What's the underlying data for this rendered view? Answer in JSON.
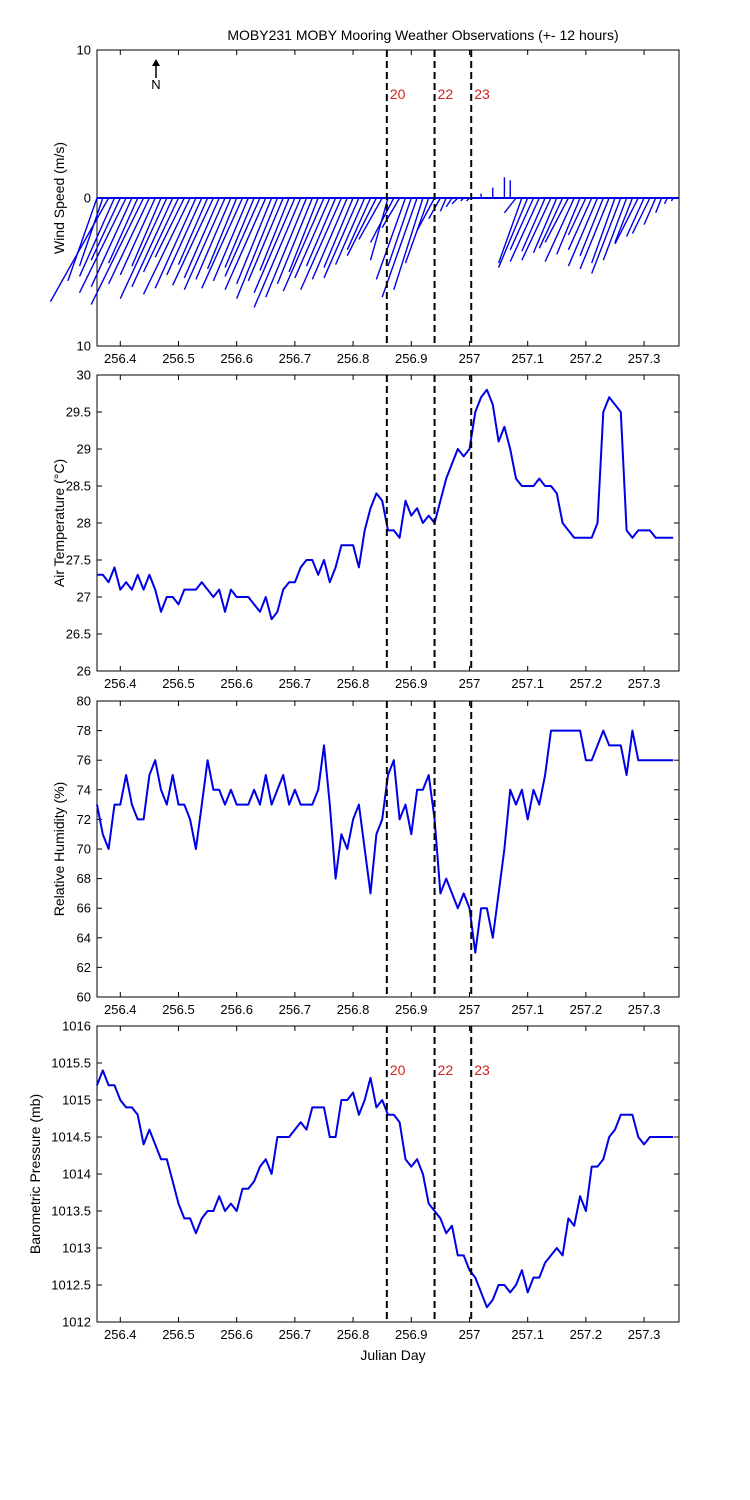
{
  "title": "MOBY231 MOBY Mooring Weather Observations (+- 12 hours)",
  "x_label": "Julian Day",
  "north_label": "N",
  "colors": {
    "series": "#0000e6",
    "event_label": "#cc2222",
    "axes": "#000000"
  },
  "event_lines": [
    {
      "x": 256.858,
      "label": "20"
    },
    {
      "x": 256.94,
      "label": "22"
    },
    {
      "x": 257.003,
      "label": "23"
    }
  ],
  "chart_data": [
    {
      "type": "wind-stick",
      "ylabel": "Wind Speed (m/s)",
      "xlim": [
        256.36,
        257.36
      ],
      "ylim": [
        -10,
        10
      ],
      "yticks": [
        10,
        0,
        10
      ],
      "xticks": [
        "256.4",
        "256.5",
        "256.6",
        "256.7",
        "256.8",
        "256.9",
        "257",
        "257.1",
        "257.2",
        "257.3"
      ],
      "show_event_labels": true,
      "sticks": [
        [
          256.36,
          -0.05,
          -5.6
        ],
        [
          256.37,
          -0.04,
          -4.6
        ],
        [
          256.38,
          -0.1,
          -7.0
        ],
        [
          256.39,
          -0.06,
          -5.3
        ],
        [
          256.4,
          -0.05,
          -4.2
        ],
        [
          256.41,
          -0.08,
          -6.4
        ],
        [
          256.42,
          -0.07,
          -6.0
        ],
        [
          256.43,
          -0.05,
          -4.4
        ],
        [
          256.44,
          -0.09,
          -7.2
        ],
        [
          256.45,
          -0.07,
          -5.8
        ],
        [
          256.46,
          -0.06,
          -5.2
        ],
        [
          256.47,
          -0.05,
          -4.6
        ],
        [
          256.48,
          -0.08,
          -6.8
        ],
        [
          256.49,
          -0.07,
          -6.0
        ],
        [
          256.5,
          -0.06,
          -5.0
        ],
        [
          256.51,
          -0.05,
          -4.0
        ],
        [
          256.52,
          -0.08,
          -6.5
        ],
        [
          256.53,
          -0.07,
          -6.1
        ],
        [
          256.54,
          -0.06,
          -5.2
        ],
        [
          256.55,
          -0.05,
          -4.5
        ],
        [
          256.56,
          -0.07,
          -5.9
        ],
        [
          256.57,
          -0.06,
          -5.4
        ],
        [
          256.58,
          -0.07,
          -6.2
        ],
        [
          256.59,
          -0.06,
          -5.5
        ],
        [
          256.6,
          -0.05,
          -4.8
        ],
        [
          256.61,
          -0.07,
          -6.1
        ],
        [
          256.62,
          -0.06,
          -5.6
        ],
        [
          256.63,
          -0.05,
          -4.7
        ],
        [
          256.64,
          -0.06,
          -5.3
        ],
        [
          256.65,
          -0.07,
          -6.2
        ],
        [
          256.66,
          -0.06,
          -5.8
        ],
        [
          256.67,
          -0.07,
          -6.8
        ],
        [
          256.68,
          -0.06,
          -5.6
        ],
        [
          256.69,
          -0.05,
          -4.9
        ],
        [
          256.7,
          -0.07,
          -6.4
        ],
        [
          256.71,
          -0.08,
          -7.4
        ],
        [
          256.72,
          -0.07,
          -6.7
        ],
        [
          256.73,
          -0.06,
          -5.8
        ],
        [
          256.74,
          -0.05,
          -5.0
        ],
        [
          256.75,
          -0.07,
          -6.3
        ],
        [
          256.76,
          -0.06,
          -5.4
        ],
        [
          256.77,
          -0.05,
          -4.6
        ],
        [
          256.78,
          -0.07,
          -6.2
        ],
        [
          256.79,
          -0.06,
          -5.5
        ],
        [
          256.8,
          -0.05,
          -4.7
        ],
        [
          256.81,
          -0.06,
          -5.4
        ],
        [
          256.82,
          -0.05,
          -4.5
        ],
        [
          256.83,
          -0.04,
          -3.5
        ],
        [
          256.84,
          -0.05,
          -3.9
        ],
        [
          256.85,
          -0.04,
          -2.8
        ],
        [
          256.86,
          -0.03,
          -4.2
        ],
        [
          256.87,
          -0.04,
          -3.0
        ],
        [
          256.88,
          -0.03,
          -2.0
        ],
        [
          256.89,
          -0.05,
          -5.5
        ],
        [
          256.9,
          -0.04,
          -4.6
        ],
        [
          256.91,
          -0.06,
          -6.7
        ],
        [
          256.92,
          -0.05,
          -6.2
        ],
        [
          256.93,
          -0.04,
          -4.4
        ],
        [
          256.94,
          -0.03,
          -2.2
        ],
        [
          256.95,
          -0.02,
          -1.4
        ],
        [
          256.96,
          -0.01,
          -0.9
        ],
        [
          256.97,
          -0.01,
          -0.6
        ],
        [
          256.98,
          -0.01,
          -0.4
        ],
        [
          256.99,
          -0.005,
          -0.2
        ],
        [
          257.0,
          -0.005,
          -0.2
        ],
        [
          257.02,
          0.0,
          0.3
        ],
        [
          257.04,
          0.0,
          0.7
        ],
        [
          257.06,
          0.0,
          1.4
        ],
        [
          257.07,
          0.0,
          1.2
        ],
        [
          257.08,
          -0.02,
          -1.0
        ],
        [
          257.09,
          -0.04,
          -4.4
        ],
        [
          257.1,
          -0.05,
          -4.7
        ],
        [
          257.11,
          -0.04,
          -3.5
        ],
        [
          257.12,
          -0.05,
          -4.3
        ],
        [
          257.13,
          -0.04,
          -3.6
        ],
        [
          257.14,
          -0.05,
          -4.2
        ],
        [
          257.15,
          -0.04,
          -3.7
        ],
        [
          257.16,
          -0.04,
          -3.4
        ],
        [
          257.17,
          -0.04,
          -3.0
        ],
        [
          257.18,
          -0.05,
          -4.3
        ],
        [
          257.19,
          -0.04,
          -3.8
        ],
        [
          257.2,
          -0.03,
          -2.5
        ],
        [
          257.21,
          -0.04,
          -3.5
        ],
        [
          257.22,
          -0.05,
          -4.6
        ],
        [
          257.23,
          -0.04,
          -3.9
        ],
        [
          257.24,
          -0.05,
          -4.8
        ],
        [
          257.25,
          -0.04,
          -4.4
        ],
        [
          257.26,
          -0.05,
          -5.1
        ],
        [
          257.27,
          -0.04,
          -4.2
        ],
        [
          257.28,
          -0.03,
          -3.0
        ],
        [
          257.29,
          -0.04,
          -3.1
        ],
        [
          257.3,
          -0.03,
          -2.6
        ],
        [
          257.31,
          -0.03,
          -2.4
        ],
        [
          257.32,
          -0.02,
          -1.8
        ],
        [
          257.33,
          -0.01,
          -1.0
        ],
        [
          257.34,
          -0.005,
          -0.4
        ],
        [
          257.35,
          -0.003,
          -0.2
        ]
      ]
    },
    {
      "type": "line",
      "ylabel": "Air Temperature (°C)",
      "xlim": [
        256.36,
        257.36
      ],
      "ylim": [
        26,
        30
      ],
      "yticks": [
        "26",
        "26.5",
        "27",
        "27.5",
        "28",
        "28.5",
        "29",
        "29.5",
        "30"
      ],
      "xticks": [
        "256.4",
        "256.5",
        "256.6",
        "256.7",
        "256.8",
        "256.9",
        "257",
        "257.1",
        "257.2",
        "257.3"
      ],
      "x": [
        256.36,
        256.37,
        256.38,
        256.39,
        256.4,
        256.41,
        256.42,
        256.43,
        256.44,
        256.45,
        256.46,
        256.47,
        256.48,
        256.49,
        256.5,
        256.51,
        256.52,
        256.53,
        256.54,
        256.55,
        256.56,
        256.57,
        256.58,
        256.59,
        256.6,
        256.61,
        256.62,
        256.63,
        256.64,
        256.65,
        256.66,
        256.67,
        256.68,
        256.69,
        256.7,
        256.71,
        256.72,
        256.73,
        256.74,
        256.75,
        256.76,
        256.77,
        256.78,
        256.79,
        256.8,
        256.81,
        256.82,
        256.83,
        256.84,
        256.85,
        256.86,
        256.87,
        256.88,
        256.89,
        256.9,
        256.91,
        256.92,
        256.93,
        256.94,
        256.95,
        256.96,
        256.97,
        256.98,
        256.99,
        257.0,
        257.01,
        257.02,
        257.03,
        257.04,
        257.05,
        257.06,
        257.07,
        257.08,
        257.09,
        257.1,
        257.11,
        257.12,
        257.13,
        257.14,
        257.15,
        257.16,
        257.17,
        257.18,
        257.19,
        257.2,
        257.21,
        257.22,
        257.23,
        257.24,
        257.25,
        257.26,
        257.27,
        257.28,
        257.29,
        257.3,
        257.31,
        257.32,
        257.33,
        257.34,
        257.35
      ],
      "y": [
        27.3,
        27.3,
        27.2,
        27.4,
        27.1,
        27.2,
        27.1,
        27.3,
        27.1,
        27.3,
        27.1,
        26.8,
        27.0,
        27.0,
        26.9,
        27.1,
        27.1,
        27.1,
        27.2,
        27.1,
        27.0,
        27.1,
        26.8,
        27.1,
        27.0,
        27.0,
        27.0,
        26.9,
        26.8,
        27.0,
        26.7,
        26.8,
        27.1,
        27.2,
        27.2,
        27.4,
        27.5,
        27.5,
        27.3,
        27.5,
        27.2,
        27.4,
        27.7,
        27.7,
        27.7,
        27.4,
        27.9,
        28.2,
        28.4,
        28.3,
        27.9,
        27.9,
        27.8,
        28.3,
        28.1,
        28.2,
        28.0,
        28.1,
        28.0,
        28.3,
        28.6,
        28.8,
        29.0,
        28.9,
        29.0,
        29.5,
        29.7,
        29.8,
        29.6,
        29.1,
        29.3,
        29.0,
        28.6,
        28.5,
        28.5,
        28.5,
        28.6,
        28.5,
        28.5,
        28.4,
        28.0,
        27.9,
        27.8,
        27.8,
        27.8,
        27.8,
        28.0,
        29.5,
        29.7,
        29.6,
        29.5,
        27.9,
        27.8,
        27.9,
        27.9,
        27.9,
        27.8,
        27.8,
        27.8,
        27.8
      ],
      "show_event_labels": false
    },
    {
      "type": "line",
      "ylabel": "Relative Humidity (%)",
      "xlim": [
        256.36,
        257.36
      ],
      "ylim": [
        60,
        80
      ],
      "yticks": [
        "60",
        "62",
        "64",
        "66",
        "68",
        "70",
        "72",
        "74",
        "76",
        "78",
        "80"
      ],
      "xticks": [
        "256.4",
        "256.5",
        "256.6",
        "256.7",
        "256.8",
        "256.9",
        "257",
        "257.1",
        "257.2",
        "257.3"
      ],
      "x": [
        256.36,
        256.37,
        256.38,
        256.39,
        256.4,
        256.41,
        256.42,
        256.43,
        256.44,
        256.45,
        256.46,
        256.47,
        256.48,
        256.49,
        256.5,
        256.51,
        256.52,
        256.53,
        256.54,
        256.55,
        256.56,
        256.57,
        256.58,
        256.59,
        256.6,
        256.61,
        256.62,
        256.63,
        256.64,
        256.65,
        256.66,
        256.67,
        256.68,
        256.69,
        256.7,
        256.71,
        256.72,
        256.73,
        256.74,
        256.75,
        256.76,
        256.77,
        256.78,
        256.79,
        256.8,
        256.81,
        256.82,
        256.83,
        256.84,
        256.85,
        256.86,
        256.87,
        256.88,
        256.89,
        256.9,
        256.91,
        256.92,
        256.93,
        256.94,
        256.95,
        256.96,
        256.97,
        256.98,
        256.99,
        257.0,
        257.01,
        257.02,
        257.03,
        257.04,
        257.05,
        257.06,
        257.07,
        257.08,
        257.09,
        257.1,
        257.11,
        257.12,
        257.13,
        257.14,
        257.15,
        257.16,
        257.17,
        257.18,
        257.19,
        257.2,
        257.21,
        257.22,
        257.23,
        257.24,
        257.25,
        257.26,
        257.27,
        257.28,
        257.29,
        257.3,
        257.31,
        257.32,
        257.33,
        257.34,
        257.35
      ],
      "y": [
        73,
        71,
        70,
        73,
        73,
        75,
        73,
        72,
        72,
        75,
        76,
        74,
        73,
        75,
        73,
        73,
        72,
        70,
        73,
        76,
        74,
        74,
        73,
        74,
        73,
        73,
        73,
        74,
        73,
        75,
        73,
        74,
        75,
        73,
        74,
        73,
        73,
        73,
        74,
        77,
        73,
        68,
        71,
        70,
        72,
        73,
        70,
        67,
        71,
        72,
        75,
        76,
        72,
        73,
        71,
        74,
        74,
        75,
        72,
        67,
        68,
        67,
        66,
        67,
        66,
        63,
        66,
        66,
        64,
        67,
        70,
        74,
        73,
        74,
        72,
        74,
        73,
        75,
        78,
        78,
        78,
        78,
        78,
        78,
        76,
        76,
        77,
        78,
        77,
        77,
        77,
        75,
        78,
        76,
        76,
        76,
        76,
        76,
        76,
        76
      ],
      "show_event_labels": false
    },
    {
      "type": "line",
      "ylabel": "Barometric Pressure (mb)",
      "xlim": [
        256.36,
        257.36
      ],
      "ylim": [
        1012,
        1016
      ],
      "yticks": [
        "1012",
        "1012.5",
        "1013",
        "1013.5",
        "1014",
        "1014.5",
        "1015",
        "1015.5",
        "1016"
      ],
      "xticks": [
        "256.4",
        "256.5",
        "256.6",
        "256.7",
        "256.8",
        "256.9",
        "257",
        "257.1",
        "257.2",
        "257.3"
      ],
      "x": [
        256.36,
        256.37,
        256.38,
        256.39,
        256.4,
        256.41,
        256.42,
        256.43,
        256.44,
        256.45,
        256.46,
        256.47,
        256.48,
        256.49,
        256.5,
        256.51,
        256.52,
        256.53,
        256.54,
        256.55,
        256.56,
        256.57,
        256.58,
        256.59,
        256.6,
        256.61,
        256.62,
        256.63,
        256.64,
        256.65,
        256.66,
        256.67,
        256.68,
        256.69,
        256.7,
        256.71,
        256.72,
        256.73,
        256.74,
        256.75,
        256.76,
        256.77,
        256.78,
        256.79,
        256.8,
        256.81,
        256.82,
        256.83,
        256.84,
        256.85,
        256.86,
        256.87,
        256.88,
        256.89,
        256.9,
        256.91,
        256.92,
        256.93,
        256.94,
        256.95,
        256.96,
        256.97,
        256.98,
        256.99,
        257.0,
        257.01,
        257.02,
        257.03,
        257.04,
        257.05,
        257.06,
        257.07,
        257.08,
        257.09,
        257.1,
        257.11,
        257.12,
        257.13,
        257.14,
        257.15,
        257.16,
        257.17,
        257.18,
        257.19,
        257.2,
        257.21,
        257.22,
        257.23,
        257.24,
        257.25,
        257.26,
        257.27,
        257.28,
        257.29,
        257.3,
        257.31,
        257.32,
        257.33,
        257.34,
        257.35
      ],
      "y": [
        1015.2,
        1015.4,
        1015.2,
        1015.2,
        1015.0,
        1014.9,
        1014.9,
        1014.8,
        1014.4,
        1014.6,
        1014.4,
        1014.2,
        1014.2,
        1013.9,
        1013.6,
        1013.4,
        1013.4,
        1013.2,
        1013.4,
        1013.5,
        1013.5,
        1013.7,
        1013.5,
        1013.6,
        1013.5,
        1013.8,
        1013.8,
        1013.9,
        1014.1,
        1014.2,
        1014.0,
        1014.5,
        1014.5,
        1014.5,
        1014.6,
        1014.7,
        1014.6,
        1014.9,
        1014.9,
        1014.9,
        1014.5,
        1014.5,
        1015.0,
        1015.0,
        1015.1,
        1014.8,
        1015.0,
        1015.3,
        1014.9,
        1015.0,
        1014.8,
        1014.8,
        1014.7,
        1014.2,
        1014.1,
        1014.2,
        1014.0,
        1013.6,
        1013.5,
        1013.4,
        1013.2,
        1013.3,
        1012.9,
        1012.9,
        1012.7,
        1012.6,
        1012.4,
        1012.2,
        1012.3,
        1012.5,
        1012.5,
        1012.4,
        1012.5,
        1012.7,
        1012.4,
        1012.6,
        1012.6,
        1012.8,
        1012.9,
        1013.0,
        1012.9,
        1013.4,
        1013.3,
        1013.7,
        1013.5,
        1014.1,
        1014.1,
        1014.2,
        1014.5,
        1014.6,
        1014.8,
        1014.8,
        1014.8,
        1014.5,
        1014.4,
        1014.5,
        1014.5,
        1014.5,
        1014.5,
        1014.5
      ],
      "show_event_labels": true
    }
  ]
}
